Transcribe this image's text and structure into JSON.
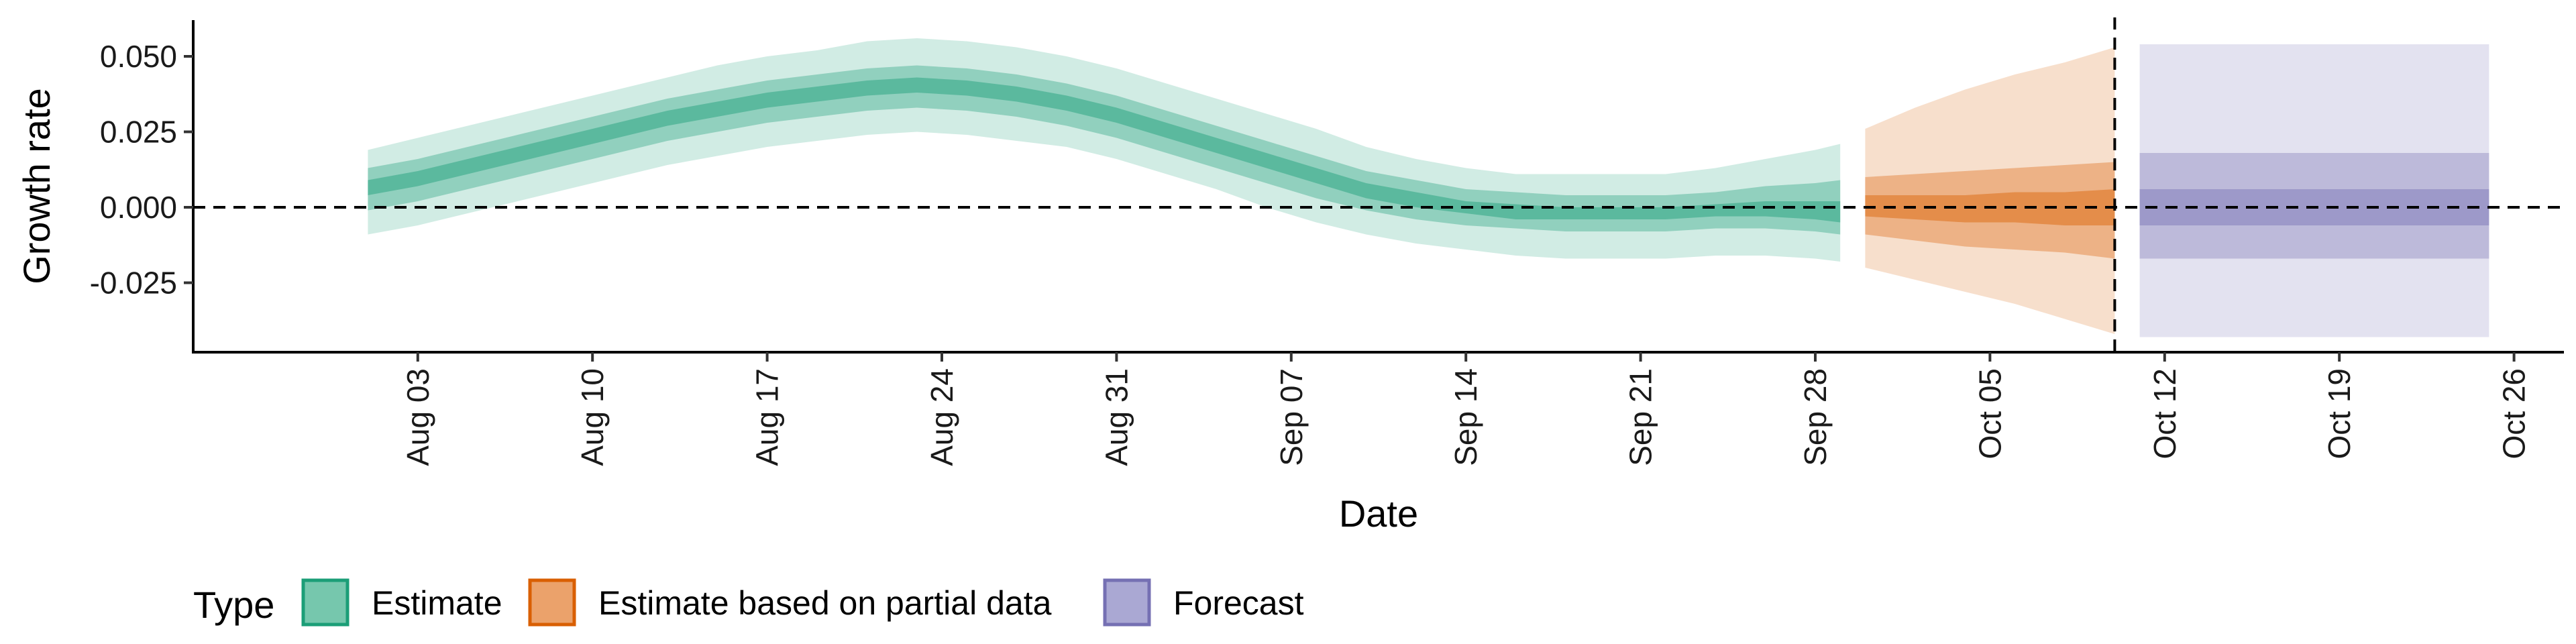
{
  "chart_data": {
    "type": "area",
    "xlabel": "Date",
    "ylabel": "Growth rate",
    "xlim": [
      "2020-07-25",
      "2020-10-28"
    ],
    "ylim": [
      -0.048,
      0.062
    ],
    "x_ticks": [
      {
        "date": "2020-08-03",
        "label": "Aug 03"
      },
      {
        "date": "2020-08-10",
        "label": "Aug 10"
      },
      {
        "date": "2020-08-17",
        "label": "Aug 17"
      },
      {
        "date": "2020-08-24",
        "label": "Aug 24"
      },
      {
        "date": "2020-08-31",
        "label": "Aug 31"
      },
      {
        "date": "2020-09-07",
        "label": "Sep 07"
      },
      {
        "date": "2020-09-14",
        "label": "Sep 14"
      },
      {
        "date": "2020-09-21",
        "label": "Sep 21"
      },
      {
        "date": "2020-09-28",
        "label": "Sep 28"
      },
      {
        "date": "2020-10-05",
        "label": "Oct 05"
      },
      {
        "date": "2020-10-12",
        "label": "Oct 12"
      },
      {
        "date": "2020-10-19",
        "label": "Oct 19"
      },
      {
        "date": "2020-10-26",
        "label": "Oct 26"
      }
    ],
    "y_ticks": [
      {
        "value": 0.05,
        "label": "0.050"
      },
      {
        "value": 0.025,
        "label": "0.025"
      },
      {
        "value": 0.0,
        "label": "0.000"
      },
      {
        "value": -0.025,
        "label": "-0.025"
      }
    ],
    "hline_y": 0,
    "vline_date": "2020-10-10",
    "grid": false,
    "legend": {
      "title": "Type",
      "placement": "bottom-left",
      "entries": [
        {
          "label": "Estimate",
          "fill": "#76c7ad",
          "border": "#1b9e77"
        },
        {
          "label": "Estimate based on partial data",
          "fill": "#eba26b",
          "border": "#d95f02"
        },
        {
          "label": "Forecast",
          "fill": "#aaa8d3",
          "border": "#7570b3"
        }
      ]
    },
    "series": [
      {
        "type_key": "Estimate",
        "color": "#1b9e77",
        "points": [
          {
            "date": "2020-08-01",
            "lo90": -0.009,
            "lo50": -0.001,
            "lo20": 0.004,
            "hi20": 0.009,
            "hi50": 0.013,
            "hi90": 0.019
          },
          {
            "date": "2020-08-03",
            "lo90": -0.006,
            "lo50": 0.002,
            "lo20": 0.007,
            "hi20": 0.012,
            "hi50": 0.016,
            "hi90": 0.023
          },
          {
            "date": "2020-08-05",
            "lo90": -0.002,
            "lo50": 0.006,
            "lo20": 0.011,
            "hi20": 0.016,
            "hi50": 0.02,
            "hi90": 0.027
          },
          {
            "date": "2020-08-07",
            "lo90": 0.002,
            "lo50": 0.01,
            "lo20": 0.015,
            "hi20": 0.02,
            "hi50": 0.024,
            "hi90": 0.031
          },
          {
            "date": "2020-08-09",
            "lo90": 0.006,
            "lo50": 0.014,
            "lo20": 0.019,
            "hi20": 0.024,
            "hi50": 0.028,
            "hi90": 0.035
          },
          {
            "date": "2020-08-11",
            "lo90": 0.01,
            "lo50": 0.018,
            "lo20": 0.023,
            "hi20": 0.028,
            "hi50": 0.032,
            "hi90": 0.039
          },
          {
            "date": "2020-08-13",
            "lo90": 0.014,
            "lo50": 0.022,
            "lo20": 0.027,
            "hi20": 0.032,
            "hi50": 0.036,
            "hi90": 0.043
          },
          {
            "date": "2020-08-15",
            "lo90": 0.017,
            "lo50": 0.025,
            "lo20": 0.03,
            "hi20": 0.035,
            "hi50": 0.039,
            "hi90": 0.047
          },
          {
            "date": "2020-08-17",
            "lo90": 0.02,
            "lo50": 0.028,
            "lo20": 0.033,
            "hi20": 0.038,
            "hi50": 0.042,
            "hi90": 0.05
          },
          {
            "date": "2020-08-19",
            "lo90": 0.022,
            "lo50": 0.03,
            "lo20": 0.035,
            "hi20": 0.04,
            "hi50": 0.044,
            "hi90": 0.052
          },
          {
            "date": "2020-08-21",
            "lo90": 0.024,
            "lo50": 0.032,
            "lo20": 0.037,
            "hi20": 0.042,
            "hi50": 0.046,
            "hi90": 0.055
          },
          {
            "date": "2020-08-23",
            "lo90": 0.025,
            "lo50": 0.033,
            "lo20": 0.038,
            "hi20": 0.043,
            "hi50": 0.047,
            "hi90": 0.056
          },
          {
            "date": "2020-08-25",
            "lo90": 0.024,
            "lo50": 0.032,
            "lo20": 0.037,
            "hi20": 0.042,
            "hi50": 0.046,
            "hi90": 0.055
          },
          {
            "date": "2020-08-27",
            "lo90": 0.022,
            "lo50": 0.03,
            "lo20": 0.035,
            "hi20": 0.04,
            "hi50": 0.044,
            "hi90": 0.053
          },
          {
            "date": "2020-08-29",
            "lo90": 0.02,
            "lo50": 0.027,
            "lo20": 0.032,
            "hi20": 0.037,
            "hi50": 0.041,
            "hi90": 0.05
          },
          {
            "date": "2020-08-31",
            "lo90": 0.016,
            "lo50": 0.023,
            "lo20": 0.028,
            "hi20": 0.033,
            "hi50": 0.037,
            "hi90": 0.046
          },
          {
            "date": "2020-09-02",
            "lo90": 0.011,
            "lo50": 0.018,
            "lo20": 0.023,
            "hi20": 0.028,
            "hi50": 0.032,
            "hi90": 0.041
          },
          {
            "date": "2020-09-04",
            "lo90": 0.006,
            "lo50": 0.013,
            "lo20": 0.018,
            "hi20": 0.023,
            "hi50": 0.027,
            "hi90": 0.036
          },
          {
            "date": "2020-09-06",
            "lo90": 0.0,
            "lo50": 0.008,
            "lo20": 0.013,
            "hi20": 0.018,
            "hi50": 0.022,
            "hi90": 0.031
          },
          {
            "date": "2020-09-08",
            "lo90": -0.005,
            "lo50": 0.003,
            "lo20": 0.008,
            "hi20": 0.013,
            "hi50": 0.017,
            "hi90": 0.026
          },
          {
            "date": "2020-09-10",
            "lo90": -0.009,
            "lo50": -0.001,
            "lo20": 0.003,
            "hi20": 0.008,
            "hi50": 0.012,
            "hi90": 0.02
          },
          {
            "date": "2020-09-12",
            "lo90": -0.012,
            "lo50": -0.004,
            "lo20": 0.0,
            "hi20": 0.005,
            "hi50": 0.009,
            "hi90": 0.016
          },
          {
            "date": "2020-09-14",
            "lo90": -0.014,
            "lo50": -0.006,
            "lo20": -0.002,
            "hi20": 0.002,
            "hi50": 0.006,
            "hi90": 0.013
          },
          {
            "date": "2020-09-16",
            "lo90": -0.016,
            "lo50": -0.007,
            "lo20": -0.004,
            "hi20": 0.001,
            "hi50": 0.005,
            "hi90": 0.011
          },
          {
            "date": "2020-09-18",
            "lo90": -0.017,
            "lo50": -0.008,
            "lo20": -0.004,
            "hi20": 0.0,
            "hi50": 0.004,
            "hi90": 0.011
          },
          {
            "date": "2020-09-20",
            "lo90": -0.017,
            "lo50": -0.008,
            "lo20": -0.004,
            "hi20": 0.0,
            "hi50": 0.004,
            "hi90": 0.011
          },
          {
            "date": "2020-09-22",
            "lo90": -0.017,
            "lo50": -0.008,
            "lo20": -0.004,
            "hi20": 0.0,
            "hi50": 0.004,
            "hi90": 0.011
          },
          {
            "date": "2020-09-24",
            "lo90": -0.016,
            "lo50": -0.007,
            "lo20": -0.003,
            "hi20": 0.001,
            "hi50": 0.005,
            "hi90": 0.013
          },
          {
            "date": "2020-09-26",
            "lo90": -0.016,
            "lo50": -0.007,
            "lo20": -0.003,
            "hi20": 0.002,
            "hi50": 0.007,
            "hi90": 0.016
          },
          {
            "date": "2020-09-28",
            "lo90": -0.017,
            "lo50": -0.008,
            "lo20": -0.004,
            "hi20": 0.002,
            "hi50": 0.008,
            "hi90": 0.019
          },
          {
            "date": "2020-09-29",
            "lo90": -0.018,
            "lo50": -0.009,
            "lo20": -0.005,
            "hi20": 0.002,
            "hi50": 0.009,
            "hi90": 0.021
          }
        ]
      },
      {
        "type_key": "Estimate based on partial data",
        "color": "#d95f02",
        "points": [
          {
            "date": "2020-09-30",
            "lo90": -0.02,
            "lo50": -0.009,
            "lo20": -0.003,
            "hi20": 0.004,
            "hi50": 0.01,
            "hi90": 0.026
          },
          {
            "date": "2020-10-02",
            "lo90": -0.024,
            "lo50": -0.011,
            "lo20": -0.004,
            "hi20": 0.004,
            "hi50": 0.011,
            "hi90": 0.033
          },
          {
            "date": "2020-10-04",
            "lo90": -0.028,
            "lo50": -0.013,
            "lo20": -0.005,
            "hi20": 0.004,
            "hi50": 0.012,
            "hi90": 0.039
          },
          {
            "date": "2020-10-06",
            "lo90": -0.032,
            "lo50": -0.014,
            "lo20": -0.005,
            "hi20": 0.005,
            "hi50": 0.013,
            "hi90": 0.044
          },
          {
            "date": "2020-10-08",
            "lo90": -0.037,
            "lo50": -0.015,
            "lo20": -0.006,
            "hi20": 0.005,
            "hi50": 0.014,
            "hi90": 0.048
          },
          {
            "date": "2020-10-10",
            "lo90": -0.042,
            "lo50": -0.017,
            "lo20": -0.006,
            "hi20": 0.006,
            "hi50": 0.015,
            "hi90": 0.053
          }
        ]
      },
      {
        "type_key": "Forecast",
        "color": "#7570b3",
        "points": [
          {
            "date": "2020-10-11",
            "lo90": -0.043,
            "lo50": -0.017,
            "lo20": -0.006,
            "hi20": 0.006,
            "hi50": 0.018,
            "hi90": 0.054
          },
          {
            "date": "2020-10-25",
            "lo90": -0.043,
            "lo50": -0.017,
            "lo20": -0.006,
            "hi20": 0.006,
            "hi50": 0.018,
            "hi90": 0.054
          }
        ]
      }
    ]
  }
}
